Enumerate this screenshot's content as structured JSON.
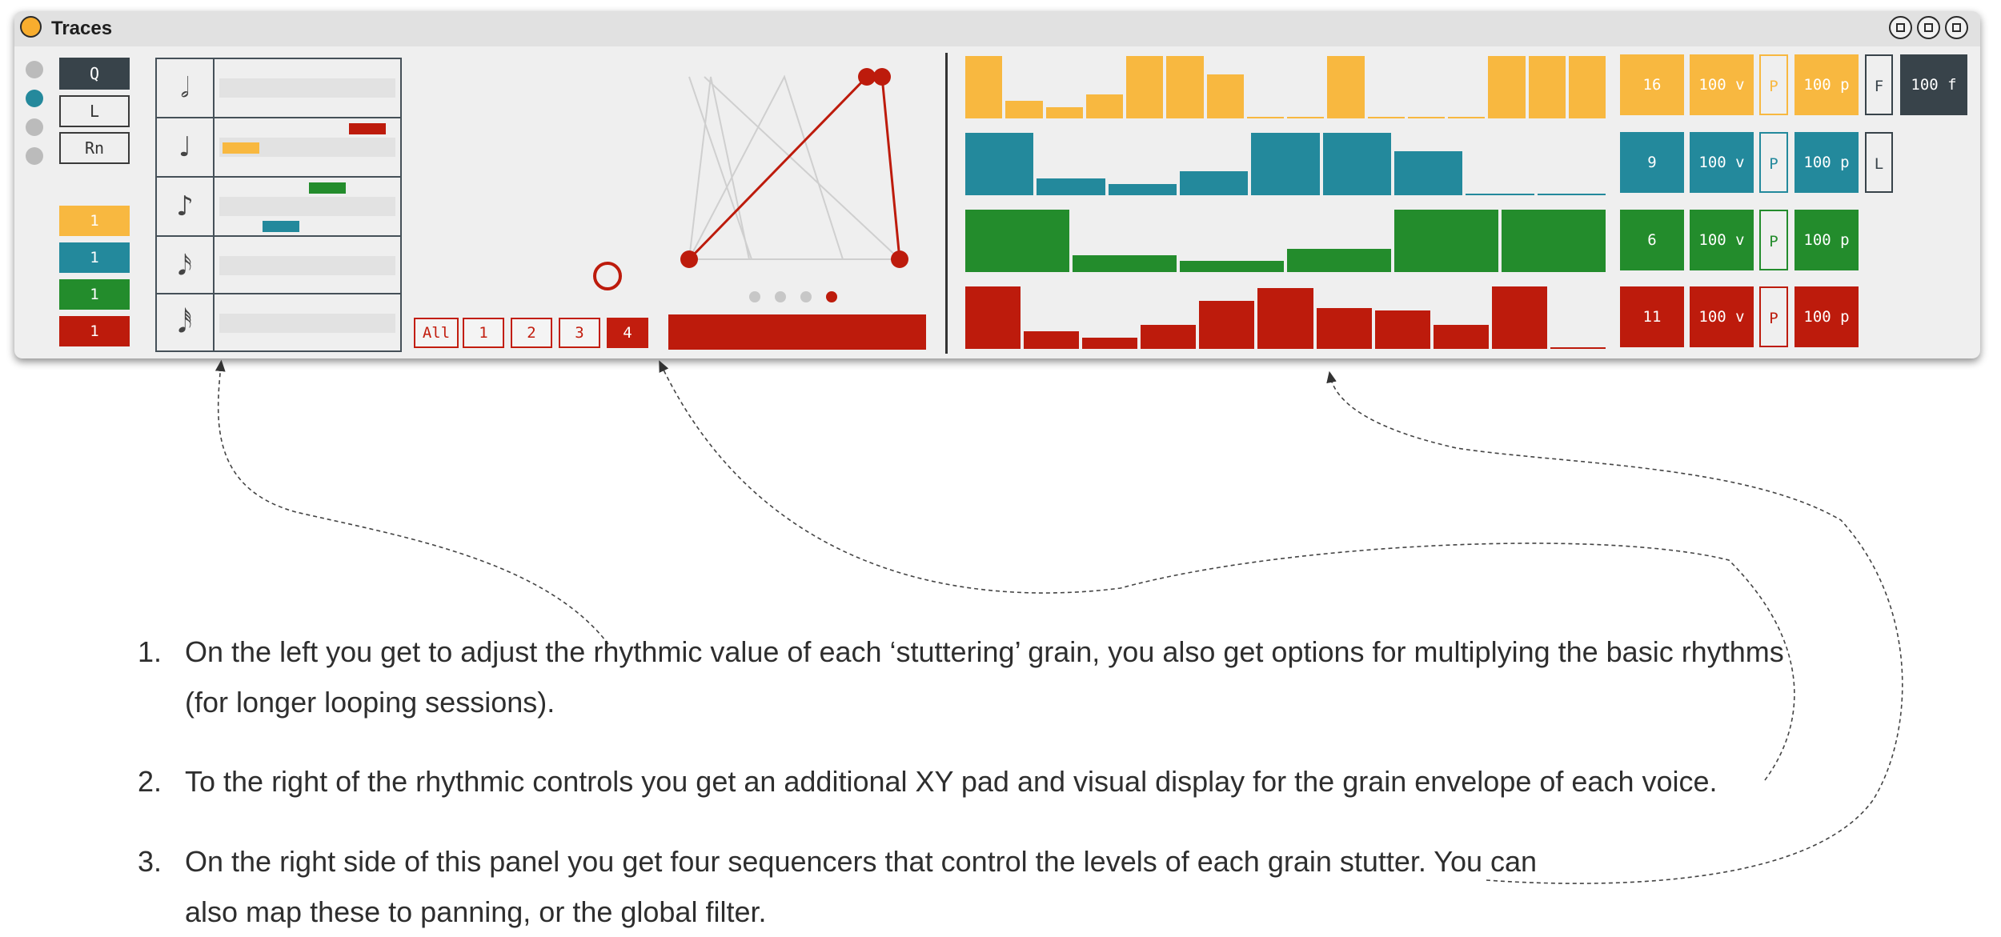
{
  "window": {
    "title": "Traces"
  },
  "colors": {
    "yellow": "#f8b840",
    "teal": "#23899c",
    "green": "#238c2c",
    "red": "#bd1b0c",
    "dark": "#38434a"
  },
  "modes": [
    "Q",
    "L",
    "Rn"
  ],
  "voice_counts": [
    "1",
    "1",
    "1",
    "1"
  ],
  "rhythm_icons": [
    "half-note-icon",
    "quarter-note-icon",
    "eighth-note-icon",
    "sixteenth-note-icon",
    "thirty-second-note-icon"
  ],
  "rhythm_glyphs": [
    "𝅗𝅥",
    "♩",
    "♪",
    "𝅘𝅥𝅯",
    "𝅘𝅥𝅰"
  ],
  "multipliers": {
    "all": "All",
    "options": [
      "1",
      "2",
      "3",
      "4"
    ],
    "selected": "4"
  },
  "envelope_page": {
    "count": 4,
    "active": 4
  },
  "sequencers": [
    {
      "color": "yellow",
      "levels": [
        1.0,
        0.28,
        0.18,
        0.38,
        1.0,
        1.0,
        0.71,
        0.02,
        0.02,
        1.0,
        0.02,
        0.02,
        0.02,
        1.0,
        1.0,
        1.0
      ]
    },
    {
      "color": "teal",
      "levels": [
        1.0,
        0.27,
        0.18,
        0.38,
        1.0,
        1.0,
        0.71,
        0.02,
        0.02
      ]
    },
    {
      "color": "green",
      "levels": [
        1.0,
        0.27,
        0.18,
        0.37,
        1.0,
        1.0
      ]
    },
    {
      "color": "red",
      "levels": [
        1.0,
        0.28,
        0.18,
        0.38,
        0.77,
        0.98,
        0.66,
        0.61,
        0.38,
        1.0,
        0.02
      ]
    }
  ],
  "rows": [
    {
      "steps": "16",
      "velocity": "100 v",
      "pan": "P",
      "pitch": "100 p",
      "extra": "F",
      "filter": "100 f"
    },
    {
      "steps": "9",
      "velocity": "100 v",
      "pan": "P",
      "pitch": "100 p",
      "extra": "L"
    },
    {
      "steps": "6",
      "velocity": "100 v",
      "pan": "P",
      "pitch": "100 p"
    },
    {
      "steps": "11",
      "velocity": "100 v",
      "pan": "P",
      "pitch": "100 p"
    }
  ],
  "notes": [
    {
      "num": "1.",
      "text": "On the left you get to adjust the rhythmic value of each ‘stuttering’ grain, you also get options for multiplying the basic rhythms (for longer looping sessions)."
    },
    {
      "num": "2.",
      "text": "To the right of the rhythmic controls you get an additional XY pad and visual display for the grain envelope of each voice."
    },
    {
      "num": "3.",
      "text": "On the right side of this panel you get four sequencers that control the levels of each grain stutter. You can also map these to panning, or the global filter."
    }
  ]
}
